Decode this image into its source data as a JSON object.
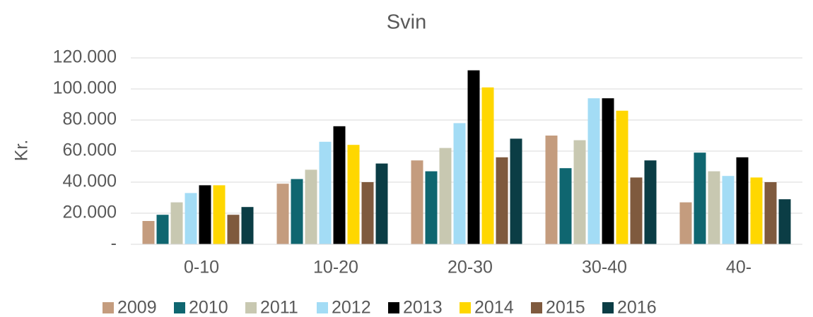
{
  "chart_data": {
    "type": "bar",
    "title": "Svin",
    "y_label": "Kr.",
    "categories": [
      "0-10",
      "10-20",
      "20-30",
      "30-40",
      "40-"
    ],
    "series": [
      {
        "name": "2009",
        "color": "#c49c7e",
        "values": [
          15000,
          39000,
          54000,
          70000,
          27000
        ]
      },
      {
        "name": "2010",
        "color": "#0f6670",
        "values": [
          19000,
          42000,
          47000,
          49000,
          59000
        ]
      },
      {
        "name": "2011",
        "color": "#c8c8b1",
        "values": [
          27000,
          48000,
          62000,
          67000,
          47000
        ]
      },
      {
        "name": "2012",
        "color": "#a3dcf5",
        "values": [
          33000,
          66000,
          78000,
          94000,
          44000
        ]
      },
      {
        "name": "2013",
        "color": "#000000",
        "values": [
          38000,
          76000,
          112000,
          94000,
          56000
        ]
      },
      {
        "name": "2014",
        "color": "#ffd700",
        "values": [
          38000,
          64000,
          101000,
          86000,
          43000
        ]
      },
      {
        "name": "2015",
        "color": "#7f5a3e",
        "values": [
          19000,
          40000,
          56000,
          43000,
          40000
        ]
      },
      {
        "name": "2016",
        "color": "#0b3d45",
        "values": [
          24000,
          52000,
          68000,
          54000,
          29000
        ]
      }
    ],
    "ylim": [
      0,
      120000
    ],
    "yticks": [
      {
        "value": 0,
        "label": "-"
      },
      {
        "value": 20000,
        "label": "20.000"
      },
      {
        "value": 40000,
        "label": "40.000"
      },
      {
        "value": 60000,
        "label": "60.000"
      },
      {
        "value": 80000,
        "label": "80.000"
      },
      {
        "value": 100000,
        "label": "100.000"
      },
      {
        "value": 120000,
        "label": "120.000"
      }
    ],
    "grid": true,
    "legend": "bottom"
  }
}
